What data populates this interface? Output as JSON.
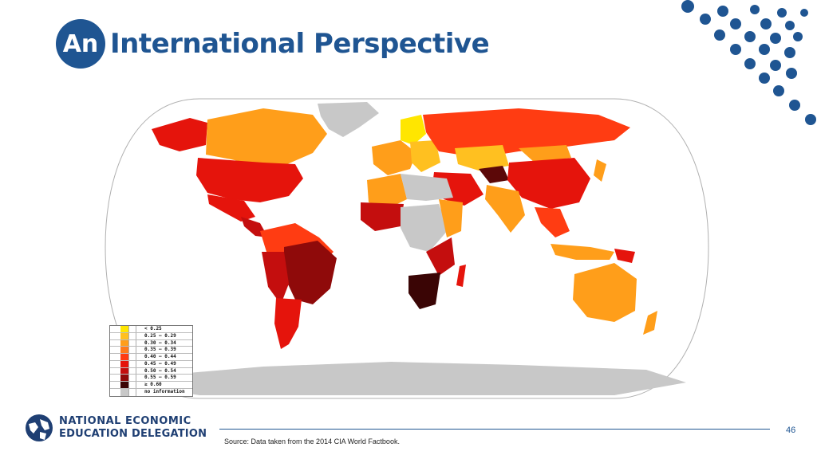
{
  "slide": {
    "title_prefix": "An",
    "title_rest": "International Perspective",
    "page_number": "46",
    "source": "Source: Data taken from the 2014 CIA World Factbook."
  },
  "logo": {
    "line1": "NATIONAL ECONOMIC",
    "line2": "EDUCATION DELEGATION",
    "color": "#1f3f73"
  },
  "colors": {
    "brand": "#1f5592",
    "c1": "#ffe600",
    "c2": "#ffc020",
    "c3": "#ff9e1a",
    "c4": "#ff7a1a",
    "c5": "#ff3c12",
    "c6": "#e5140c",
    "c7": "#c40e0e",
    "c8": "#8f0a0a",
    "c9": "#5c0808",
    "c10": "#3a0505",
    "nodata": "#c8c8c8"
  },
  "legend": {
    "rows": [
      {
        "label": "< 0.25",
        "color": "#ffe600"
      },
      {
        "label": "0.25 – 0.29",
        "color": "#ffc020"
      },
      {
        "label": "0.30 – 0.34",
        "color": "#ff9e1a"
      },
      {
        "label": "0.35 – 0.39",
        "color": "#ff7a1a"
      },
      {
        "label": "0.40 – 0.44",
        "color": "#ff3c12"
      },
      {
        "label": "0.45 – 0.49",
        "color": "#e5140c"
      },
      {
        "label": "0.50 – 0.54",
        "color": "#c40e0e"
      },
      {
        "label": "0.55 – 0.59",
        "color": "#8f0a0a"
      },
      {
        "label": "≥ 0.60",
        "color": "#3a0505"
      },
      {
        "label": "no information",
        "color": "#c8c8c8"
      }
    ]
  }
}
